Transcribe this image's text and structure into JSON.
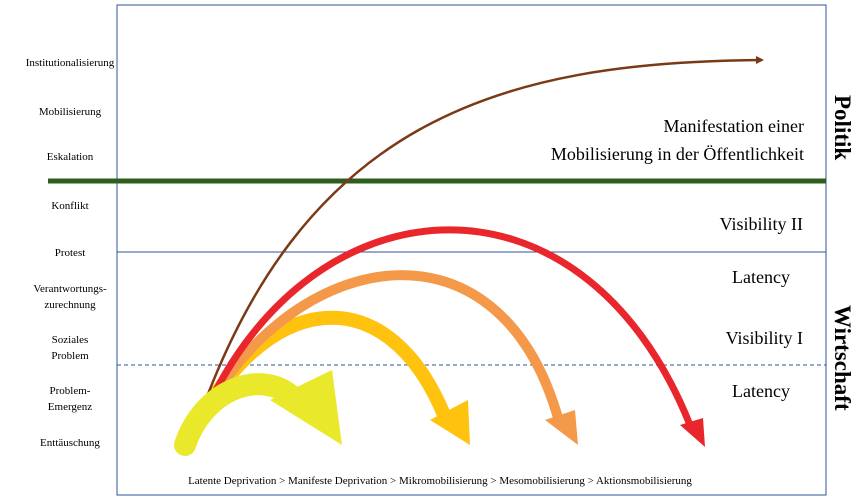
{
  "levels": [
    {
      "lines": [
        "Institutionalisierung"
      ]
    },
    {
      "lines": [
        "Mobilisierung"
      ]
    },
    {
      "lines": [
        "Eskalation"
      ]
    },
    {
      "lines": [
        "Konflikt"
      ]
    },
    {
      "lines": [
        "Protest"
      ]
    },
    {
      "lines": [
        "Verantwortungs-",
        "zurechnung"
      ]
    },
    {
      "lines": [
        "Soziales",
        "Problem"
      ]
    },
    {
      "lines": [
        "Problem-",
        "Emergenz"
      ]
    },
    {
      "lines": [
        "Enttäuschung"
      ]
    }
  ],
  "regions": [
    {
      "lines": [
        "Manifestation einer",
        "Mobilisierung in der Öffentlichkeit"
      ]
    },
    {
      "lines": [
        "Visibility II"
      ]
    },
    {
      "lines": [
        "Latency"
      ]
    },
    {
      "lines": [
        "Visibility I"
      ]
    },
    {
      "lines": [
        "Latency"
      ]
    }
  ],
  "sides": [
    "Politik",
    "Wirtschaft"
  ],
  "caption": "Latente Deprivation > Manifeste Deprivation > Mikromobilisierung  > Mesomobilisierung  > Aktionsmobilisierung"
}
